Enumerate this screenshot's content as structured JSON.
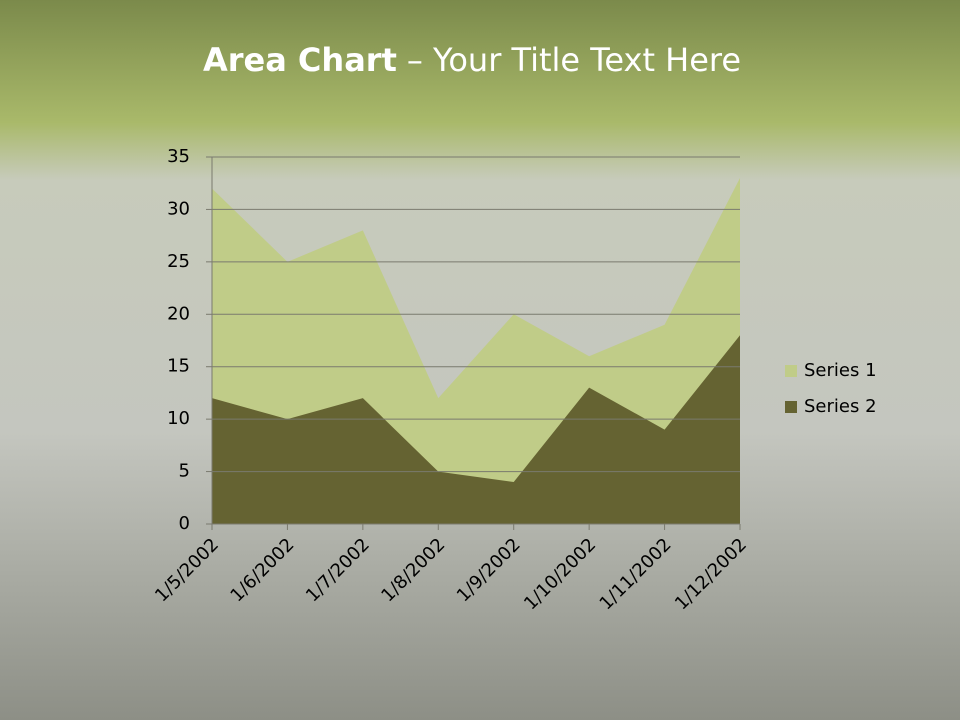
{
  "chart_data": {
    "type": "area",
    "title": {
      "bold": "Area Chart",
      "rest": "– Your Title Text Here"
    },
    "categories": [
      "1/5/2002",
      "1/6/2002",
      "1/7/2002",
      "1/8/2002",
      "1/9/2002",
      "1/10/2002",
      "1/11/2002",
      "1/12/2002"
    ],
    "series": [
      {
        "name": "Series 1",
        "color": "#c0cc88",
        "values": [
          32,
          25,
          28,
          12,
          20,
          16,
          19,
          33
        ]
      },
      {
        "name": "Series 2",
        "color": "#656332",
        "values": [
          12,
          10,
          12,
          5,
          4,
          13,
          9,
          18
        ]
      }
    ],
    "ylim": [
      0,
      35
    ],
    "yticks": [
      0,
      5,
      10,
      15,
      20,
      25,
      30,
      35
    ],
    "grid": true,
    "legend": "right"
  }
}
